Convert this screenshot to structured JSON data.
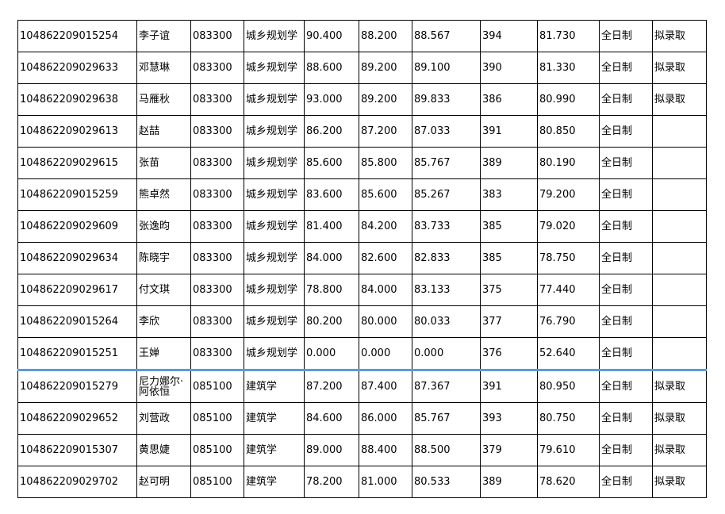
{
  "table": {
    "rows": [
      [
        "104862209015254",
        "李子谊",
        "083300",
        "城乡规划学",
        "90.400",
        "88.200",
        "88.567",
        "394",
        "81.730",
        "全日制",
        "拟录取"
      ],
      [
        "104862209029633",
        "邓慧琳",
        "083300",
        "城乡规划学",
        "88.600",
        "89.200",
        "89.100",
        "390",
        "81.330",
        "全日制",
        "拟录取"
      ],
      [
        "104862209029638",
        "马雁秋",
        "083300",
        "城乡规划学",
        "93.000",
        "89.200",
        "89.833",
        "386",
        "80.990",
        "全日制",
        "拟录取"
      ],
      [
        "104862209029613",
        "赵喆",
        "083300",
        "城乡规划学",
        "86.200",
        "87.200",
        "87.033",
        "391",
        "80.850",
        "全日制",
        null
      ],
      [
        "104862209029615",
        "张苗",
        "083300",
        "城乡规划学",
        "85.600",
        "85.800",
        "85.767",
        "389",
        "80.190",
        "全日制",
        null
      ],
      [
        "104862209015259",
        "熊卓然",
        "083300",
        "城乡规划学",
        "83.600",
        "85.600",
        "85.267",
        "383",
        "79.200",
        "全日制",
        null
      ],
      [
        "104862209029609",
        "张逸昀",
        "083300",
        "城乡规划学",
        "81.400",
        "84.200",
        "83.733",
        "385",
        "79.020",
        "全日制",
        null
      ],
      [
        "104862209029634",
        "陈晓宇",
        "083300",
        "城乡规划学",
        "84.000",
        "82.600",
        "82.833",
        "385",
        "78.750",
        "全日制",
        null
      ],
      [
        "104862209029617",
        "付文琪",
        "083300",
        "城乡规划学",
        "78.800",
        "84.000",
        "83.133",
        "375",
        "77.440",
        "全日制",
        null
      ],
      [
        "104862209015264",
        "李欣",
        "083300",
        "城乡规划学",
        "80.200",
        "80.000",
        "80.033",
        "377",
        "76.790",
        "全日制",
        null
      ],
      [
        "104862209015251",
        "王婵",
        "083300",
        "城乡规划学",
        "0.000",
        "0.000",
        "0.000",
        "376",
        "52.640",
        "全日制",
        null
      ],
      [
        "104862209015279",
        "尼力娜尔·阿依恒",
        "085100",
        "建筑学",
        "87.200",
        "87.400",
        "87.367",
        "391",
        "80.950",
        "全日制",
        "拟录取"
      ],
      [
        "104862209029652",
        "刘营政",
        "085100",
        "建筑学",
        "84.600",
        "86.000",
        "85.767",
        "393",
        "80.750",
        "全日制",
        "拟录取"
      ],
      [
        "104862209015307",
        "黄思婕",
        "085100",
        "建筑学",
        "89.000",
        "88.400",
        "88.500",
        "379",
        "79.610",
        "全日制",
        "拟录取"
      ],
      [
        "104862209029702",
        "赵可明",
        "085100",
        "建筑学",
        "78.200",
        "81.000",
        "80.533",
        "389",
        "78.620",
        "全日制",
        "拟录取"
      ]
    ]
  }
}
